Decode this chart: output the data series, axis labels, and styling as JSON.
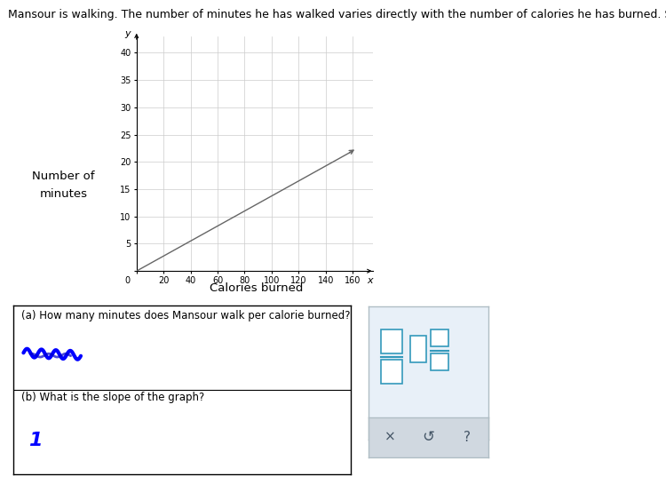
{
  "title_text": "Mansour is walking. The number of minutes he has walked varies directly with the number of calories he has burned. See the graph below",
  "title_fontsize": 9.0,
  "xlabel": "Calories burned",
  "ylabel_line1": "Number of",
  "ylabel_line2": "minutes",
  "ylabel_fontsize": 9.5,
  "xlabel_fontsize": 9.5,
  "axis_label_y": "y",
  "axis_label_x": "x",
  "xlim": [
    0,
    175
  ],
  "ylim": [
    0,
    43
  ],
  "xticks": [
    0,
    20,
    40,
    60,
    80,
    100,
    120,
    140,
    160
  ],
  "yticks": [
    0,
    5,
    10,
    15,
    20,
    25,
    30,
    35,
    40
  ],
  "line_x": [
    0,
    160
  ],
  "line_y": [
    0,
    22
  ],
  "line_color": "#666666",
  "line_width": 1.0,
  "grid_color": "#cccccc",
  "grid_linewidth": 0.5,
  "background_color": "#ffffff",
  "tick_fontsize": 7.0,
  "question_a": "(a) How many minutes does Mansour walk per calorie burned?",
  "question_b": "(b) What is the slope of the graph?",
  "frac_color": "#3399bb"
}
